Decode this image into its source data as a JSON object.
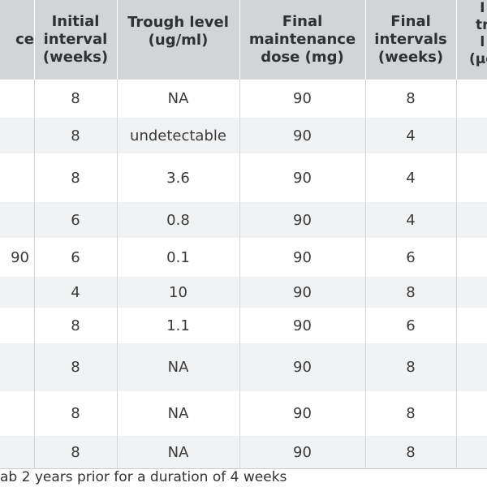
{
  "table": {
    "headers": [
      "ce",
      "Initial\ninterval\n(weeks)",
      "Trough level\n(ug/ml)",
      "Final\nmaintenance\ndose (mg)",
      "Final\nintervals\n(weeks)",
      "I\ntr\nl\n(µg"
    ],
    "rows": [
      [
        "",
        "8",
        "NA",
        "90",
        "8",
        ""
      ],
      [
        "",
        "8",
        "undetectable",
        "90",
        "4",
        ""
      ],
      [
        "",
        "8",
        "3.6",
        "90",
        "4",
        ""
      ],
      [
        "",
        "6",
        "0.8",
        "90",
        "4",
        ""
      ],
      [
        "90",
        "6",
        "0.1",
        "90",
        "6",
        ""
      ],
      [
        "",
        "4",
        "10",
        "90",
        "8",
        ""
      ],
      [
        "",
        "8",
        "1.1",
        "90",
        "6",
        ""
      ],
      [
        "",
        "8",
        "NA",
        "90",
        "8",
        ""
      ],
      [
        "",
        "8",
        "NA",
        "90",
        "8",
        ""
      ],
      [
        "",
        "8",
        "NA",
        "90",
        "8",
        ""
      ]
    ]
  },
  "footnote": "ab 2 years prior for a duration of 4 weeks"
}
